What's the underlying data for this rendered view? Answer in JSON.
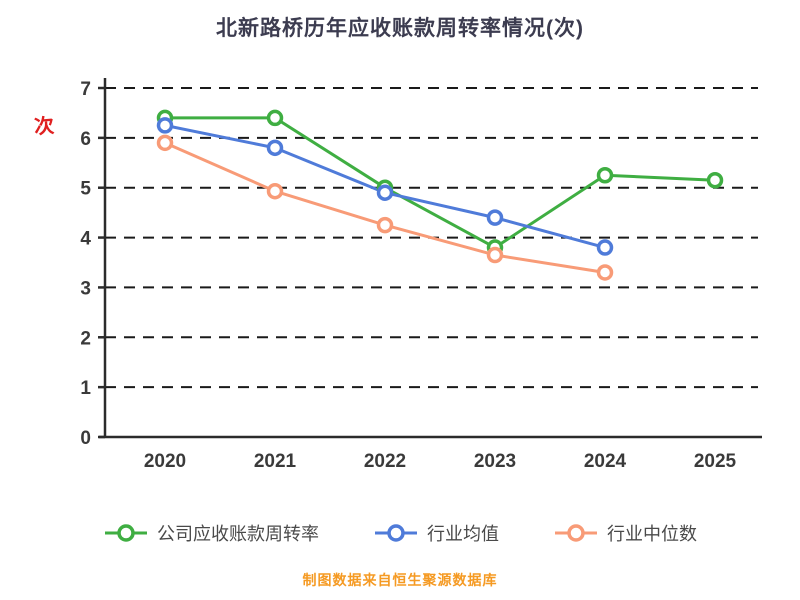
{
  "title": "北新路桥历年应收账款周转率情况(次)",
  "y_unit_label": "次",
  "caption": "制图数据来自恒生聚源数据库",
  "colors": {
    "title": "#3c3c50",
    "axis": "#2b2b2b",
    "tick_label": "#3a3a3a",
    "grid": "#1a1a1a",
    "caption": "#f59a23",
    "ylabel": "#e02020",
    "legend_text": "#4a4a4a"
  },
  "chart_data": {
    "type": "line",
    "title": "北新路桥历年应收账款周转率情况(次)",
    "xlabel": "",
    "ylabel": "次",
    "x": [
      "2020",
      "2021",
      "2022",
      "2023",
      "2024",
      "2025"
    ],
    "ylim": [
      0,
      7
    ],
    "yticks": [
      0,
      1,
      2,
      3,
      4,
      5,
      6,
      7
    ],
    "grid": "dashed",
    "legend_position": "bottom",
    "series": [
      {
        "name": "公司应收账款周转率",
        "color": "#3fae42",
        "values": [
          6.4,
          6.4,
          5.0,
          3.8,
          5.25,
          5.15
        ]
      },
      {
        "name": "行业均值",
        "color": "#4f7bd9",
        "values": [
          6.25,
          5.8,
          4.9,
          4.4,
          3.8,
          null
        ]
      },
      {
        "name": "行业中位数",
        "color": "#f89b77",
        "values": [
          5.9,
          4.93,
          4.25,
          3.65,
          3.3,
          null
        ]
      }
    ]
  }
}
